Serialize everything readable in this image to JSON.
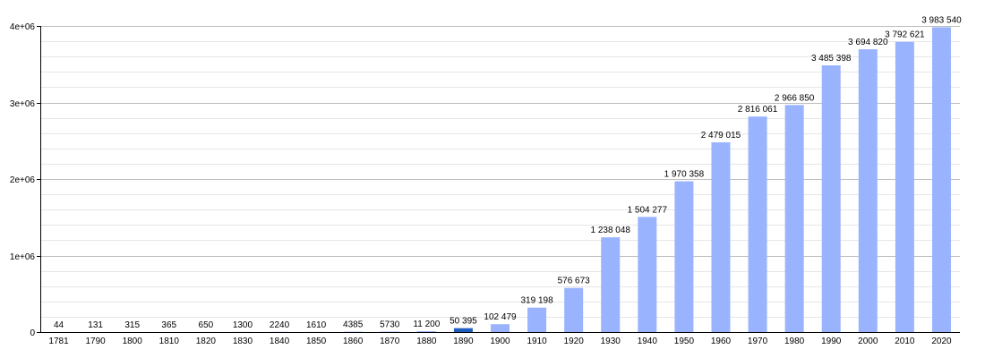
{
  "chart_data": {
    "type": "bar",
    "title": "",
    "xlabel": "",
    "ylabel": "",
    "ylim": [
      0,
      4000000
    ],
    "y_ticks": [
      0,
      1000000,
      2000000,
      3000000,
      4000000
    ],
    "y_tick_labels": [
      "0",
      "1e+06",
      "2e+06",
      "3e+06",
      "4e+06"
    ],
    "grid": true,
    "legend": "none",
    "categories": [
      "1781",
      "1790",
      "1800",
      "1810",
      "1820",
      "1830",
      "1840",
      "1850",
      "1860",
      "1870",
      "1880",
      "1890",
      "1900",
      "1910",
      "1920",
      "1930",
      "1940",
      "1950",
      "1960",
      "1970",
      "1980",
      "1990",
      "2000",
      "2010",
      "2020"
    ],
    "values": [
      44,
      131,
      315,
      365,
      650,
      1300,
      2240,
      1610,
      4385,
      5730,
      11200,
      50395,
      102479,
      319198,
      576673,
      1238048,
      1504277,
      1970358,
      2479015,
      2816061,
      2966850,
      3485398,
      3694820,
      3792621,
      3983540
    ],
    "value_labels": [
      "44",
      "131",
      "315",
      "365",
      "650",
      "1300",
      "2240",
      "1610",
      "4385",
      "5730",
      "11 200",
      "50 395",
      "102 479",
      "319 198",
      "576 673",
      "1 238 048",
      "1 504 277",
      "1 970 358",
      "2 479 015",
      "2 816 061",
      "2 966 850",
      "3 485 398",
      "3 694 820",
      "3 792 621",
      "3 983 540"
    ],
    "highlight_index": 11,
    "colors": {
      "bar": "#99b3ff",
      "bar_highlight": "#1f5fbf",
      "grid_major": "#bdbdbd",
      "grid_minor": "#e6e6e6",
      "axis": "#000000"
    }
  }
}
